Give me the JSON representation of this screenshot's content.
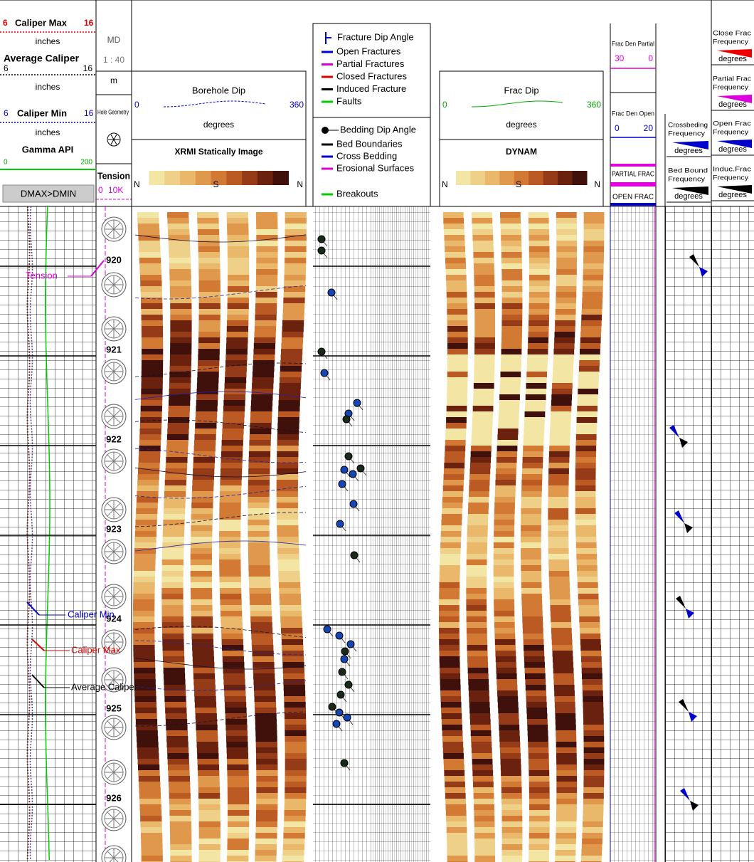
{
  "header": {
    "caliper_track": {
      "caliper_max": {
        "min": "6",
        "label": "Caliper Max",
        "max": "16",
        "unit": "inches"
      },
      "average_caliper": {
        "label": "Average Caliper",
        "min": "6",
        "max": "16",
        "unit": "inches"
      },
      "caliper_min": {
        "min": "6",
        "label": "Caliper Min",
        "max": "16",
        "unit": "inches"
      },
      "gamma": {
        "label": "Gamma API",
        "min": "0",
        "max": "200"
      },
      "flag": "DMAX>DMIN"
    },
    "depth_track": {
      "md": "MD",
      "scale": "1 : 40",
      "unit": "m",
      "hole_geometry": "Hole Geometry",
      "tension": {
        "label": "Tension",
        "min": "0",
        "max": "10K"
      }
    },
    "image_track": {
      "dip_title": "Borehole Dip",
      "min": "0",
      "max": "360",
      "unit": "degrees",
      "image_title": "XRMI Statically Image",
      "azimuths": [
        "N",
        "S",
        "N"
      ]
    },
    "legend": {
      "fracture_title": "Fracture Dip Angle",
      "fracture_items": [
        "Open Fractures",
        "Partial Fractures",
        "Closed Fractures",
        "Induced Fracture",
        "Faults"
      ],
      "bedding_title": "Bedding Dip Angle",
      "bedding_items": [
        "Bed Boundaries",
        "Cross Bedding",
        "Erosional Surfaces"
      ],
      "breakouts": "Breakouts"
    },
    "dynamic_track": {
      "dip_title": "Frac Dip",
      "min": "0",
      "max": "360",
      "unit": "degrees",
      "image_title": "DYNAM",
      "azimuths": [
        "N",
        "S",
        "N"
      ]
    },
    "frac_density": {
      "partial": {
        "label": "Frac Den Partial",
        "min": "30",
        "max": "0"
      },
      "open": {
        "label": "Frac Den Open",
        "min": "0",
        "max": "20"
      },
      "partial_flag": "PARTIAL FRAC",
      "open_flag": "OPEN FRAC"
    },
    "frequency": {
      "close": {
        "label": [
          "Close Frac",
          "Frequency"
        ],
        "unit": "degrees"
      },
      "partial": {
        "label": [
          "Partial Frac",
          "Frequency"
        ],
        "unit": "degrees"
      },
      "open": {
        "label": [
          "Open Frac",
          "Frequency"
        ],
        "unit": "degrees"
      },
      "induced": {
        "label": [
          "Induc.Frac",
          "Frequency"
        ],
        "unit": "degrees"
      },
      "crossbedding": {
        "label": [
          "Crossbeding",
          "Frequency"
        ],
        "unit": "degrees"
      },
      "bed_bound": {
        "label": [
          "Bed Bound",
          "Frequency"
        ],
        "unit": "degrees"
      }
    }
  },
  "body": {
    "depths": [
      "920",
      "921",
      "922",
      "923",
      "924",
      "925",
      "926"
    ],
    "annotations": {
      "tension": "Tension",
      "caliper_min": "Caliper Min",
      "caliper_max": "Caliper Max",
      "average_caliper": "Average Caliper"
    }
  }
}
